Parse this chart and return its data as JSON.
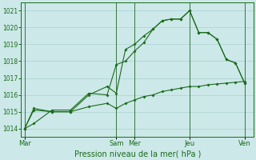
{
  "xlabel": "Pression niveau de la mer( hPa )",
  "background_color": "#cce8e8",
  "grid_color": "#aad0d0",
  "line_color": "#1a6b1a",
  "vline_color": "#226622",
  "ylim": [
    1013.5,
    1021.5
  ],
  "yticks": [
    1014,
    1015,
    1016,
    1017,
    1018,
    1019,
    1020,
    1021
  ],
  "xtick_labels": [
    "Mar",
    "Sam",
    "Mer",
    "Jeu",
    "Ven"
  ],
  "xtick_positions": [
    0,
    5,
    6,
    9,
    12
  ],
  "vline_positions": [
    0,
    5,
    6,
    9,
    12
  ],
  "xlim": [
    -0.2,
    12.5
  ],
  "series1_x": [
    0,
    0.5,
    1.5,
    2.5,
    3.5,
    4.5,
    5,
    5.5,
    6,
    6.5,
    7,
    7.5,
    8,
    8.5,
    9,
    9.5,
    10,
    10.5,
    11,
    11.5,
    12
  ],
  "series1_y": [
    1014.0,
    1014.3,
    1015.1,
    1015.1,
    1016.1,
    1016.0,
    1017.8,
    1018.0,
    1018.6,
    1019.1,
    1019.9,
    1020.4,
    1020.5,
    1020.5,
    1021.0,
    1019.7,
    1019.7,
    1019.3,
    1018.1,
    1017.9,
    1016.7
  ],
  "series2_x": [
    0,
    0.5,
    1.5,
    2.5,
    3.5,
    4.5,
    5,
    5.5,
    6,
    6.5,
    7,
    7.5,
    8,
    8.5,
    9,
    9.5,
    10,
    10.5,
    11,
    11.5,
    12
  ],
  "series2_y": [
    1014.0,
    1015.2,
    1015.0,
    1015.0,
    1016.0,
    1016.5,
    1016.1,
    1018.7,
    1019.0,
    1019.5,
    1019.9,
    1020.4,
    1020.5,
    1020.5,
    1021.0,
    1019.7,
    1019.7,
    1019.3,
    1018.1,
    1017.9,
    1016.7
  ],
  "series3_x": [
    0,
    0.5,
    1.5,
    2.5,
    3.5,
    4.5,
    5,
    5.5,
    6,
    6.5,
    7,
    7.5,
    8,
    8.5,
    9,
    9.5,
    10,
    10.5,
    11,
    11.5,
    12
  ],
  "series3_y": [
    1014.0,
    1015.1,
    1015.0,
    1015.0,
    1015.3,
    1015.5,
    1015.2,
    1015.5,
    1015.7,
    1015.9,
    1016.0,
    1016.2,
    1016.3,
    1016.4,
    1016.5,
    1016.5,
    1016.6,
    1016.65,
    1016.7,
    1016.75,
    1016.8
  ]
}
